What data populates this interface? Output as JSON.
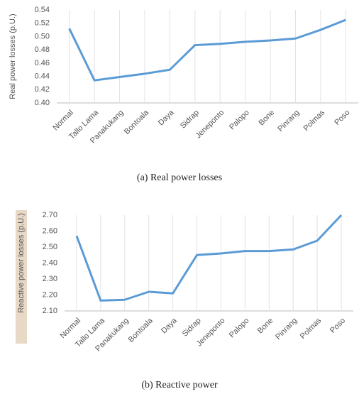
{
  "chart_data": [
    {
      "type": "line",
      "caption": "(a) Real power losses",
      "y_label": "Real power losses (p.U.)",
      "categories": [
        "Normal",
        "Tallo Lama",
        "Panakukang",
        "Bontoala",
        "Daya",
        "Sidrap",
        "Jeneponto",
        "Palopo",
        "Bone",
        "Pinrang",
        "Polmas",
        "Poso"
      ],
      "values": [
        0.512,
        0.434,
        0.439,
        0.444,
        0.45,
        0.487,
        0.489,
        0.492,
        0.494,
        0.497,
        0.51,
        0.525
      ],
      "color": "#5b9bd5",
      "ylim": [
        0.4,
        0.54
      ],
      "yticks": [
        {
          "value": 0.4,
          "label": "0.40"
        },
        {
          "value": 0.42,
          "label": "0.42"
        },
        {
          "value": 0.44,
          "label": "0.44"
        },
        {
          "value": 0.46,
          "label": "0.46"
        },
        {
          "value": 0.48,
          "label": "0.48"
        },
        {
          "value": 0.5,
          "label": "0.50"
        },
        {
          "value": 0.52,
          "label": "0.52"
        },
        {
          "value": 0.54,
          "label": "0.54"
        }
      ],
      "grid": true
    },
    {
      "type": "line",
      "caption": "(b) Reactive power",
      "y_label": "Reactive power losses (p.U.)",
      "categories": [
        "Normal",
        "Tallo Lama",
        "Panakukang",
        "Bontoala",
        "Daya",
        "Sidrap",
        "Jeneponto",
        "Palopo",
        "Bone",
        "Pinrang",
        "Polmas",
        "Poso"
      ],
      "values": [
        2.57,
        2.165,
        2.17,
        2.22,
        2.21,
        2.45,
        2.46,
        2.475,
        2.475,
        2.485,
        2.54,
        2.7
      ],
      "color": "#5b9bd5",
      "ylim": [
        2.1,
        2.7
      ],
      "yticks": [
        {
          "value": 2.1,
          "label": "2.10"
        },
        {
          "value": 2.2,
          "label": "2.20"
        },
        {
          "value": 2.3,
          "label": "2.30"
        },
        {
          "value": 2.4,
          "label": "2.40"
        },
        {
          "value": 2.5,
          "label": "2.50"
        },
        {
          "value": 2.6,
          "label": "2.60"
        },
        {
          "value": 2.7,
          "label": "2.70"
        }
      ],
      "grid": true
    }
  ]
}
